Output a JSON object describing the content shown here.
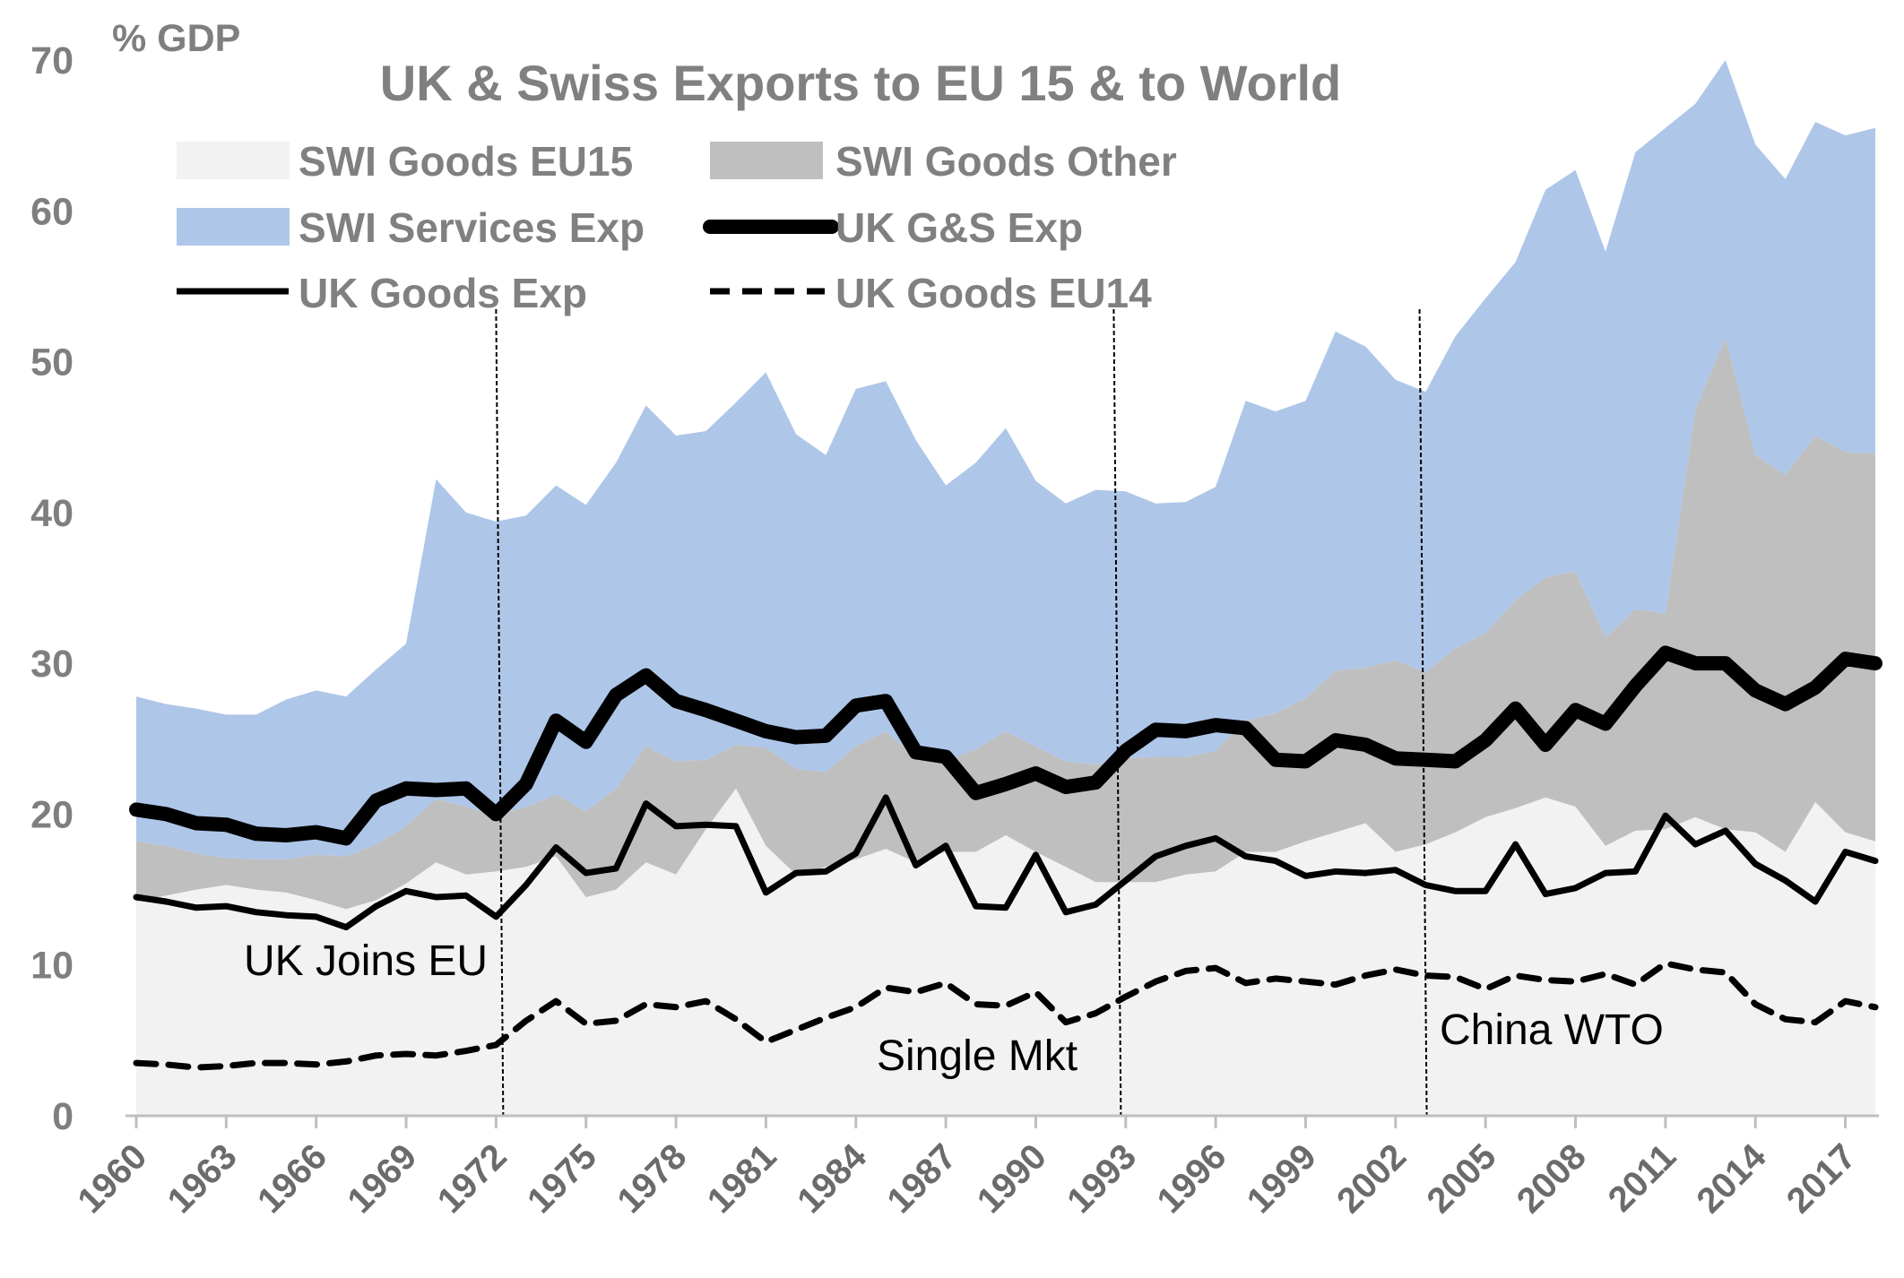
{
  "chart_data": {
    "type": "area",
    "title": "UK & Swiss Exports to EU 15 & to World",
    "ylabel": "% GDP",
    "xlabel": "",
    "ylim": [
      0,
      70
    ],
    "yticks": [
      "0",
      "10",
      "20",
      "30",
      "40",
      "50",
      "60",
      "70"
    ],
    "x": [
      1960,
      1961,
      1962,
      1963,
      1964,
      1965,
      1966,
      1967,
      1968,
      1969,
      1970,
      1971,
      1972,
      1973,
      1974,
      1975,
      1976,
      1977,
      1978,
      1979,
      1980,
      1981,
      1982,
      1983,
      1984,
      1985,
      1986,
      1987,
      1988,
      1989,
      1990,
      1991,
      1992,
      1993,
      1994,
      1995,
      1996,
      1997,
      1998,
      1999,
      2000,
      2001,
      2002,
      2003,
      2004,
      2005,
      2006,
      2007,
      2008,
      2009,
      2010,
      2011,
      2012,
      2013,
      2014,
      2015,
      2016,
      2017,
      2018
    ],
    "xtick_labels": [
      "1960",
      "1963",
      "1966",
      "1969",
      "1972",
      "1975",
      "1978",
      "1981",
      "1984",
      "1987",
      "1990",
      "1993",
      "1996",
      "1999",
      "2002",
      "2005",
      "2008",
      "2011",
      "2014",
      "2017"
    ],
    "stacked_areas": [
      {
        "name": "SWI Goods EU15",
        "color": "#f2f2f2",
        "values": [
          14.2,
          14.6,
          15.0,
          15.3,
          15.0,
          14.8,
          14.3,
          13.7,
          14.3,
          15.4,
          16.8,
          16.0,
          16.2,
          16.5,
          17.2,
          14.5,
          15.0,
          16.8,
          16.0,
          19.0,
          21.7,
          17.9,
          16.0,
          16.5,
          17.0,
          17.7,
          16.8,
          17.5,
          17.5,
          18.6,
          17.5,
          16.5,
          15.5,
          15.5,
          15.5,
          16.0,
          16.2,
          17.5,
          17.5,
          18.2,
          18.8,
          19.4,
          17.5,
          18.0,
          18.8,
          19.8,
          20.4,
          21.1,
          20.5,
          17.9,
          18.9,
          19.0,
          19.8,
          19.0,
          18.8,
          17.5,
          20.8,
          18.8,
          18.2
        ]
      },
      {
        "name": "SWI Goods Other",
        "color": "#bfbfbf",
        "values": [
          4.0,
          3.3,
          2.4,
          1.8,
          2.0,
          2.2,
          3.0,
          3.5,
          3.7,
          3.8,
          4.2,
          4.5,
          3.7,
          4.0,
          4.1,
          5.7,
          6.7,
          7.7,
          7.5,
          4.6,
          2.9,
          6.5,
          7.0,
          6.3,
          7.5,
          7.8,
          7.0,
          6.0,
          6.8,
          6.9,
          7.0,
          7.0,
          7.8,
          8.2,
          8.3,
          7.8,
          8.0,
          8.7,
          9.2,
          9.5,
          10.7,
          10.3,
          12.7,
          11.4,
          12.2,
          12.2,
          13.8,
          14.6,
          15.6,
          13.8,
          14.7,
          14.3,
          27.0,
          32.6,
          25.0,
          25.0,
          24.3,
          25.2,
          25.7
        ]
      },
      {
        "name": "SWI Services Exp",
        "color": "#aec6e8",
        "values": [
          9.6,
          9.4,
          9.6,
          9.5,
          9.6,
          10.6,
          10.9,
          10.6,
          11.6,
          12.1,
          21.2,
          19.5,
          19.5,
          19.3,
          20.5,
          20.3,
          21.6,
          22.6,
          21.6,
          21.8,
          22.7,
          24.9,
          22.2,
          21.0,
          23.7,
          23.2,
          21.0,
          18.3,
          19.0,
          20.1,
          17.6,
          17.1,
          18.2,
          17.7,
          16.8,
          16.9,
          17.5,
          21.2,
          20.0,
          19.7,
          22.5,
          21.3,
          18.6,
          18.6,
          20.7,
          22.2,
          22.4,
          25.7,
          26.6,
          25.6,
          30.3,
          32.2,
          20.3,
          18.4,
          20.6,
          19.6,
          20.8,
          21.0,
          21.6
        ]
      }
    ],
    "series": [
      {
        "name": "UK G&S Exp",
        "style": "thick solid",
        "values": [
          20.3,
          20.0,
          19.4,
          19.3,
          18.7,
          18.6,
          18.8,
          18.4,
          20.9,
          21.7,
          21.6,
          21.7,
          20.0,
          22.0,
          26.2,
          24.8,
          27.9,
          29.2,
          27.5,
          26.9,
          26.2,
          25.5,
          25.1,
          25.2,
          27.2,
          27.5,
          24.1,
          23.8,
          21.4,
          22.0,
          22.7,
          21.8,
          22.1,
          24.2,
          25.6,
          25.5,
          25.9,
          25.7,
          23.6,
          23.5,
          24.9,
          24.6,
          23.7,
          23.6,
          23.5,
          24.9,
          27.0,
          24.6,
          26.9,
          26.0,
          28.5,
          30.7,
          30.0,
          30.0,
          28.2,
          27.3,
          28.4,
          30.3,
          30.0
        ]
      },
      {
        "name": "UK Goods Exp",
        "style": "solid",
        "values": [
          14.5,
          14.2,
          13.8,
          13.9,
          13.5,
          13.3,
          13.2,
          12.5,
          13.9,
          14.9,
          14.5,
          14.6,
          13.2,
          15.3,
          17.8,
          16.1,
          16.4,
          20.7,
          19.2,
          19.3,
          19.2,
          14.8,
          16.1,
          16.2,
          17.4,
          21.1,
          16.6,
          17.9,
          13.9,
          13.8,
          17.3,
          13.5,
          14.0,
          15.6,
          17.2,
          17.9,
          18.4,
          17.2,
          16.9,
          15.9,
          16.2,
          16.1,
          16.3,
          15.3,
          14.9,
          14.9,
          18.0,
          14.7,
          15.1,
          16.1,
          16.2,
          19.9,
          18.0,
          18.9,
          16.7,
          15.6,
          14.2,
          17.5,
          16.9
        ]
      },
      {
        "name": "UK Goods EU14",
        "style": "dashed",
        "values": [
          3.5,
          3.4,
          3.2,
          3.3,
          3.5,
          3.5,
          3.4,
          3.6,
          4.0,
          4.1,
          4.0,
          4.3,
          4.7,
          6.3,
          7.6,
          6.1,
          6.3,
          7.4,
          7.2,
          7.6,
          6.4,
          4.9,
          5.7,
          6.5,
          7.2,
          8.5,
          8.2,
          8.8,
          7.4,
          7.3,
          8.2,
          6.2,
          6.8,
          7.9,
          8.9,
          9.6,
          9.8,
          8.8,
          9.1,
          8.9,
          8.7,
          9.3,
          9.7,
          9.3,
          9.2,
          8.4,
          9.3,
          9.0,
          8.9,
          9.4,
          8.7,
          10.1,
          9.7,
          9.5,
          7.4,
          6.4,
          6.2,
          7.6,
          7.2
        ]
      }
    ],
    "legend": [
      "SWI Goods EU15",
      "SWI Goods Other",
      "SWI Services Exp",
      "UK G&S Exp",
      "UK Goods Exp",
      "UK Goods EU14"
    ],
    "legend_position": "top-left",
    "vlines": [
      {
        "x": 1972.0,
        "label": "UK Joins EU"
      },
      {
        "x": 1992.6,
        "label": "Single Mkt"
      },
      {
        "x": 2002.8,
        "label": "China WTO"
      }
    ]
  }
}
